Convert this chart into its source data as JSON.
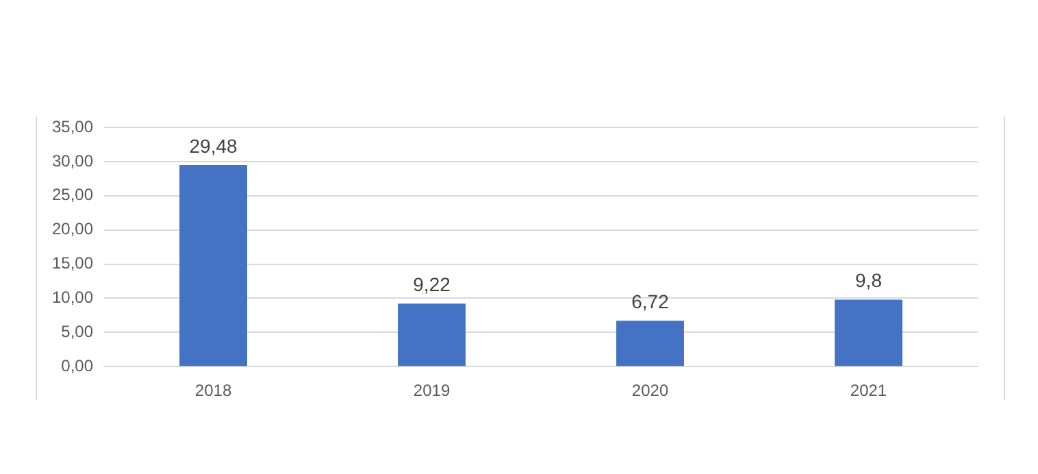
{
  "chart_data": {
    "type": "bar",
    "categories": [
      "2018",
      "2019",
      "2020",
      "2021"
    ],
    "values": [
      29.48,
      9.22,
      6.72,
      9.8
    ],
    "value_labels": [
      "29,48",
      "9,22",
      "6,72",
      "9,8"
    ],
    "color": "#4472c4",
    "ylim": [
      0,
      35
    ],
    "yticks": [
      {
        "value": 0,
        "label": "0,00"
      },
      {
        "value": 5,
        "label": "5,00"
      },
      {
        "value": 10,
        "label": "10,00"
      },
      {
        "value": 15,
        "label": "15,00"
      },
      {
        "value": 20,
        "label": "20,00"
      },
      {
        "value": 25,
        "label": "25,00"
      },
      {
        "value": 30,
        "label": "30,00"
      },
      {
        "value": 35,
        "label": "35,00"
      }
    ],
    "grid": "y"
  }
}
